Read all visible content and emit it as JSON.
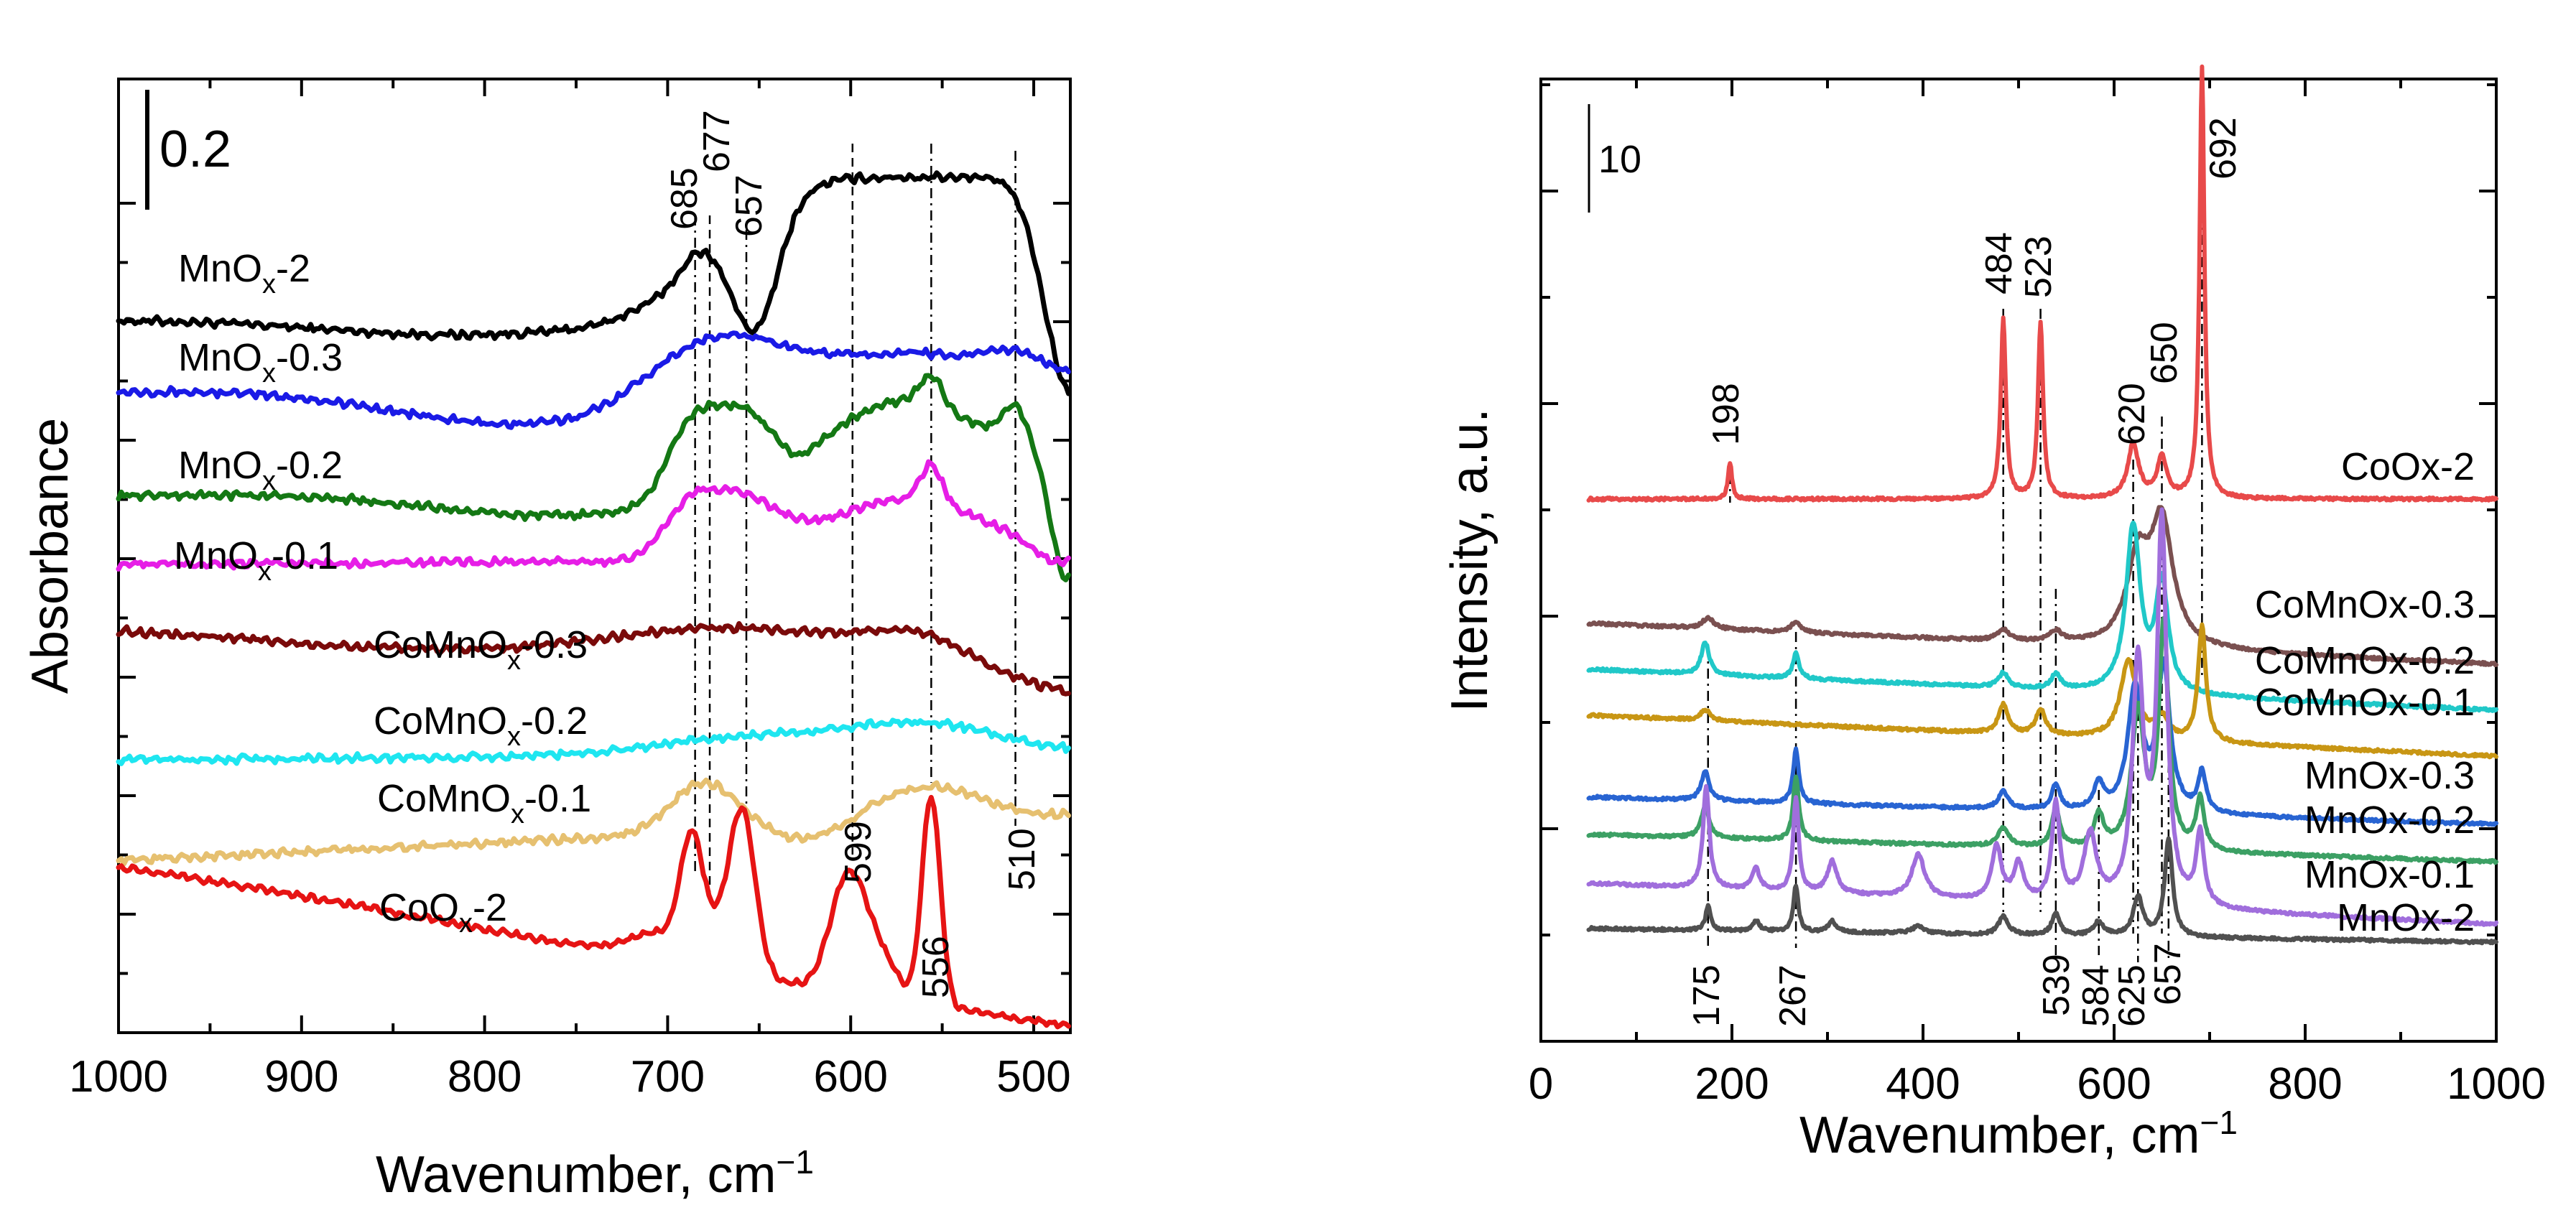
{
  "chart_data": [
    {
      "type": "line",
      "panel": "left",
      "title": "",
      "xlabel": "Wavenumber, cm",
      "xlabel_sup": "−1",
      "ylabel": "Absorbance",
      "xlim": [
        1000,
        480
      ],
      "x_reversed": true,
      "xticks": [
        "1000",
        "900",
        "800",
        "700",
        "600",
        "500"
      ],
      "scale_bar_label": "0.2",
      "series": [
        {
          "name": "MnOx-2",
          "label_main": "MnO",
          "label_sub": "x",
          "label_tail": "-2",
          "color": "#000000",
          "offset": 0
        },
        {
          "name": "MnOx-0.3",
          "label_main": "MnO",
          "label_sub": "x",
          "label_tail": "-0.3",
          "color": "#1a1ae6",
          "offset": 1
        },
        {
          "name": "MnOx-0.2",
          "label_main": "MnO",
          "label_sub": "x",
          "label_tail": "-0.2",
          "color": "#147814",
          "offset": 2
        },
        {
          "name": "MnOx-0.1",
          "label_main": "MnO",
          "label_sub": "x",
          "label_tail": "-0.1",
          "color": "#e61ee6",
          "offset": 3
        },
        {
          "name": "CoMnOx-0.3",
          "label_main": "CoMnO",
          "label_sub": "x",
          "label_tail": "-0.3",
          "color": "#7a0a0a",
          "offset": 4
        },
        {
          "name": "CoMnOx-0.2",
          "label_main": "CoMnO",
          "label_sub": "x",
          "label_tail": "-0.2",
          "color": "#1ee6f0",
          "offset": 5
        },
        {
          "name": "CoMnOx-0.1",
          "label_main": "CoMnO",
          "label_sub": "x",
          "label_tail": "-0.1",
          "color": "#e6c070",
          "offset": 6
        },
        {
          "name": "CoOx-2",
          "label_main": "CoO",
          "label_sub": "x",
          "label_tail": "-2",
          "color": "#e61414",
          "offset": 7
        }
      ],
      "peak_positions": [
        685,
        677,
        657,
        599,
        556,
        510
      ],
      "peak_labels": [
        "685",
        "677",
        "657",
        "599",
        "556",
        "510"
      ]
    },
    {
      "type": "line",
      "panel": "right",
      "title": "",
      "xlabel": "Wavenumber, cm",
      "xlabel_sup": "−1",
      "ylabel": "Intensity, a.u.",
      "xlim": [
        0,
        1000
      ],
      "xticks": [
        "0",
        "200",
        "400",
        "600",
        "800",
        "1000"
      ],
      "scale_bar_label": "10",
      "series": [
        {
          "name": "CoOx-2",
          "color": "#e84a4a"
        },
        {
          "name": "CoMnOx-0.3",
          "color": "#7a5050"
        },
        {
          "name": "CoMnOx-0.2",
          "color": "#20c8c8"
        },
        {
          "name": "CoMnOx-0.1",
          "color": "#c89614"
        },
        {
          "name": "MnOx-0.3",
          "color": "#2864d2"
        },
        {
          "name": "MnOx-0.2",
          "color": "#3ca064"
        },
        {
          "name": "MnOx-0.1",
          "color": "#a06edc"
        },
        {
          "name": "MnOx-2",
          "color": "#505050"
        }
      ],
      "peak_positions_top": [
        198,
        484,
        523,
        620,
        650,
        692
      ],
      "peak_labels_top": [
        "198",
        "484",
        "523",
        "620",
        "650",
        "692"
      ],
      "peak_positions_bottom": [
        175,
        267,
        539,
        584,
        625,
        657
      ],
      "peak_labels_bottom": [
        "175",
        "267",
        "539",
        "584",
        "625",
        "657"
      ]
    }
  ]
}
